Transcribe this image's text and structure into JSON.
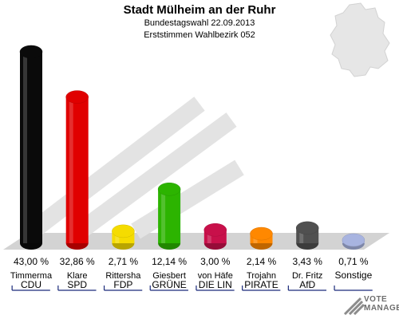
{
  "header": {
    "title": "Stadt Mülheim an der Ruhr",
    "subtitle1": "Bundestagswahl 22.09.2013",
    "subtitle2": "Erststimmen Wahlbezirk 052"
  },
  "logo": {
    "line1": "VOTE",
    "line2": "MANAGER",
    "icon": "vote-manager-logo"
  },
  "chart_data": {
    "type": "bar",
    "title": "Stadt Mülheim an der Ruhr",
    "ylim": [
      0,
      43
    ],
    "unit": "%",
    "categories": [
      "CDU",
      "SPD",
      "FDP",
      "GRÜNE",
      "DIE LIN",
      "PIRATE",
      "AfD",
      "Sonstige"
    ],
    "candidates": [
      "Timmerma",
      "Klare",
      "Rittersha",
      "Giesbert",
      "von Häfe",
      "Trojahn",
      "Dr. Fritz",
      ""
    ],
    "values": [
      43.0,
      32.86,
      2.71,
      12.14,
      3.0,
      2.14,
      3.43,
      0.71
    ],
    "value_labels": [
      "43,00 %",
      "32,86 %",
      "2,71 %",
      "12,14 %",
      "3,00 %",
      "2,14 %",
      "3,43 %",
      "0,71 %"
    ],
    "colors": [
      "#0a0a0a",
      "#e00000",
      "#f5dc00",
      "#2cb400",
      "#c8104a",
      "#ff8800",
      "#505050",
      "#a8b4e0"
    ]
  }
}
